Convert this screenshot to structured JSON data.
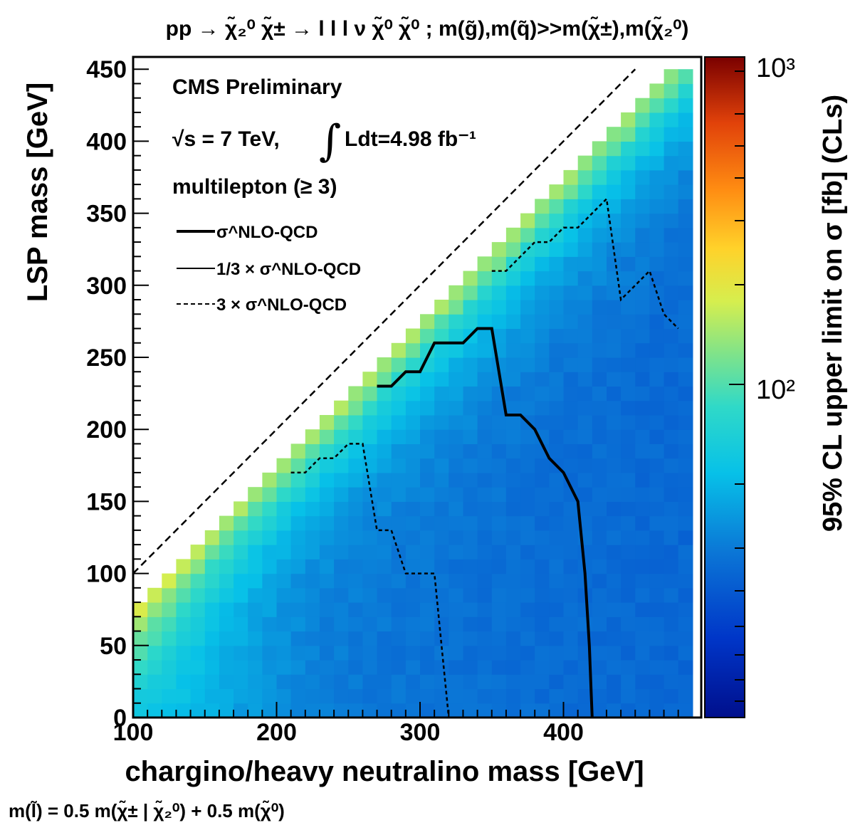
{
  "chart_data": {
    "type": "heatmap",
    "title": "pp → χ̃₂⁰ χ̃± → l l l ν χ̃⁰ χ̃⁰ ; m(g̃),m(q̃)>>m(χ̃±),m(χ̃₂⁰)",
    "xlabel": "chargino/heavy neutralino mass [GeV]",
    "ylabel": "LSP mass [GeV]",
    "zlabel": "95% CL upper limit on σ [fb] (CLs)",
    "footnote": "m(l̃) = 0.5 m(χ̃± | χ̃₂⁰) + 0.5 m(χ̃⁰)",
    "xlim": [
      100,
      490
    ],
    "ylim": [
      0,
      450
    ],
    "zlim": [
      10,
      1000
    ],
    "z_scale": "log",
    "x_ticks": [
      "100",
      "200",
      "300",
      "400"
    ],
    "y_ticks": [
      "0",
      "50",
      "100",
      "150",
      "200",
      "250",
      "300",
      "350",
      "400",
      "450"
    ],
    "z_ticks": [
      "10²",
      "10³"
    ],
    "bin_width_x": 10,
    "bin_width_y": 10,
    "annotations": {
      "experiment": "CMS Preliminary",
      "sqrt_s": "√s = 7 TeV,",
      "lumi": "Ldt=4.98 fb⁻¹",
      "channel": "multilepton (≥ 3)"
    },
    "legend": {
      "position": "top-left",
      "entries": [
        {
          "label": "σ^NLO-QCD",
          "style": "solid-thick"
        },
        {
          "label": "1/3 × σ^NLO-QCD",
          "style": "solid"
        },
        {
          "label": "3 × σ^NLO-QCD",
          "style": "dashed"
        }
      ]
    },
    "diagonal": {
      "x": [
        100,
        450
      ],
      "y": [
        100,
        450
      ]
    },
    "contours": [
      {
        "name": "σ^NLO-QCD",
        "x": [
          270,
          280,
          290,
          300,
          310,
          330,
          340,
          350,
          360,
          370,
          380,
          390,
          400,
          410,
          415,
          418,
          420
        ],
        "y": [
          230,
          230,
          240,
          240,
          260,
          260,
          270,
          270,
          210,
          210,
          200,
          180,
          170,
          150,
          100,
          50,
          0
        ]
      },
      {
        "name": "3 × σ^NLO-QCD (low)",
        "x": [
          210,
          220,
          230,
          240,
          250,
          260,
          270,
          280,
          290,
          300,
          310,
          315,
          318,
          320
        ],
        "y": [
          170,
          170,
          180,
          180,
          190,
          190,
          130,
          130,
          100,
          100,
          100,
          50,
          20,
          0
        ]
      },
      {
        "name": "3 × σ^NLO-QCD (high)",
        "x": [
          350,
          360,
          370,
          380,
          390,
          400,
          410,
          420,
          430,
          440,
          450,
          460,
          470,
          480
        ],
        "y": [
          310,
          310,
          320,
          330,
          330,
          340,
          340,
          350,
          360,
          290,
          300,
          310,
          280,
          270
        ]
      }
    ],
    "heat": {
      "description": "log10(σ_UL/fb) per 10 GeV bin: ~2.0-2.1 at the diagonal band, ~1.8-1.9 at low masses, falling to ~1.4-1.55 at high chargino mass",
      "diagonal_value": 2.05,
      "min_value": 1.45
    }
  }
}
